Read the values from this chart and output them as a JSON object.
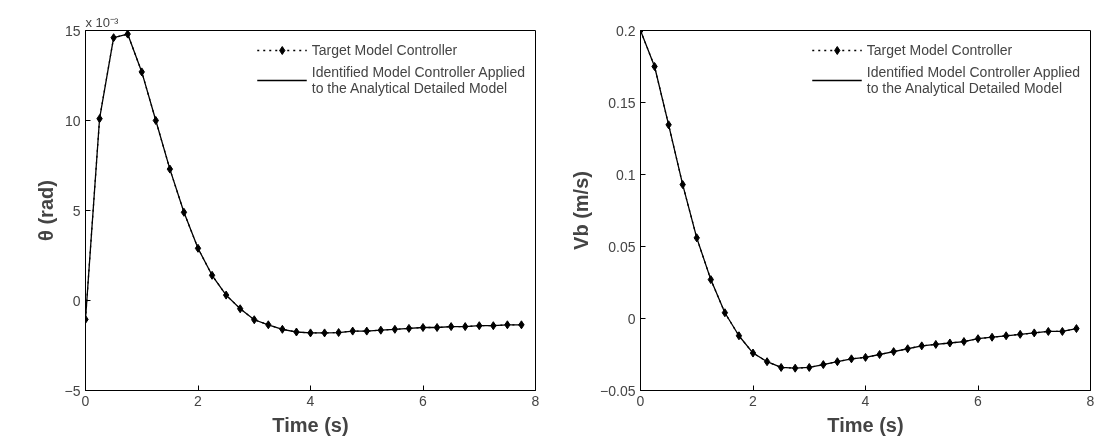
{
  "chart_data": [
    {
      "type": "line",
      "xlabel": "Time (s)",
      "ylabel": "θ (rad)",
      "annotations": [
        "x 10⁻³"
      ],
      "x": [
        0,
        0.25,
        0.5,
        0.75,
        1,
        1.25,
        1.5,
        1.75,
        2,
        2.25,
        2.5,
        2.75,
        3,
        3.25,
        3.5,
        3.75,
        4,
        4.25,
        4.5,
        4.75,
        5,
        5.25,
        5.5,
        5.75,
        6,
        6.25,
        6.5,
        6.75,
        7,
        7.25,
        7.5,
        7.75
      ],
      "series": [
        {
          "name": "Target Model Controller",
          "color": "#000000",
          "line_style": "dotted",
          "marker": "diamond",
          "values": [
            -1.05,
            10.1,
            14.6,
            14.8,
            12.7,
            10.0,
            7.3,
            4.9,
            2.9,
            1.4,
            0.3,
            -0.46,
            -1.07,
            -1.35,
            -1.6,
            -1.75,
            -1.8,
            -1.8,
            -1.78,
            -1.7,
            -1.7,
            -1.65,
            -1.6,
            -1.55,
            -1.5,
            -1.5,
            -1.45,
            -1.45,
            -1.4,
            -1.4,
            -1.35,
            -1.35
          ]
        },
        {
          "name": "Identified Model Controller Applied\nto the Analytical Detailed Model",
          "color": "#000000",
          "line_style": "solid",
          "marker": "none",
          "values": [
            -1.05,
            10.1,
            14.6,
            14.8,
            12.7,
            10.0,
            7.3,
            4.9,
            2.9,
            1.4,
            0.3,
            -0.46,
            -1.07,
            -1.35,
            -1.6,
            -1.75,
            -1.8,
            -1.8,
            -1.78,
            -1.7,
            -1.7,
            -1.65,
            -1.6,
            -1.55,
            -1.5,
            -1.5,
            -1.45,
            -1.45,
            -1.4,
            -1.4,
            -1.35,
            -1.35
          ]
        }
      ],
      "xlim": [
        0,
        8
      ],
      "xticks": [
        0,
        2,
        4,
        6,
        8
      ],
      "ylim": [
        -5,
        15
      ],
      "yticks": [
        -5,
        0,
        5,
        10,
        15
      ],
      "grid": false,
      "legend": "top right"
    },
    {
      "type": "line",
      "xlabel": "Time (s)",
      "ylabel": "Vb (m/s)",
      "x": [
        0,
        0.25,
        0.5,
        0.75,
        1,
        1.25,
        1.5,
        1.75,
        2,
        2.25,
        2.5,
        2.75,
        3,
        3.25,
        3.5,
        3.75,
        4,
        4.25,
        4.5,
        4.75,
        5,
        5.25,
        5.5,
        5.75,
        6,
        6.25,
        6.5,
        6.75,
        7,
        7.25,
        7.5,
        7.75
      ],
      "series": [
        {
          "name": "Target Model Controller",
          "color": "#000000",
          "line_style": "dotted",
          "marker": "diamond",
          "values": [
            0.2,
            0.175,
            0.1345,
            0.093,
            0.056,
            0.027,
            0.004,
            -0.012,
            -0.024,
            -0.03,
            -0.034,
            -0.0345,
            -0.034,
            -0.032,
            -0.03,
            -0.028,
            -0.027,
            -0.025,
            -0.023,
            -0.021,
            -0.019,
            -0.018,
            -0.017,
            -0.016,
            -0.014,
            -0.013,
            -0.012,
            -0.011,
            -0.01,
            -0.009,
            -0.009,
            -0.007
          ]
        },
        {
          "name": "Identified Model Controller Applied\nto the Analytical Detailed Model",
          "color": "#000000",
          "line_style": "solid",
          "marker": "none",
          "values": [
            0.2,
            0.175,
            0.1345,
            0.093,
            0.056,
            0.027,
            0.004,
            -0.012,
            -0.024,
            -0.03,
            -0.034,
            -0.0345,
            -0.034,
            -0.032,
            -0.03,
            -0.028,
            -0.027,
            -0.025,
            -0.023,
            -0.021,
            -0.019,
            -0.018,
            -0.017,
            -0.016,
            -0.014,
            -0.013,
            -0.012,
            -0.011,
            -0.01,
            -0.009,
            -0.009,
            -0.007
          ]
        }
      ],
      "xlim": [
        0,
        8
      ],
      "xticks": [
        0,
        2,
        4,
        6,
        8
      ],
      "ylim": [
        -0.05,
        0.2
      ],
      "yticks": [
        -0.05,
        0,
        0.05,
        0.1,
        0.15,
        0.2
      ],
      "grid": false,
      "legend": "top right"
    }
  ]
}
